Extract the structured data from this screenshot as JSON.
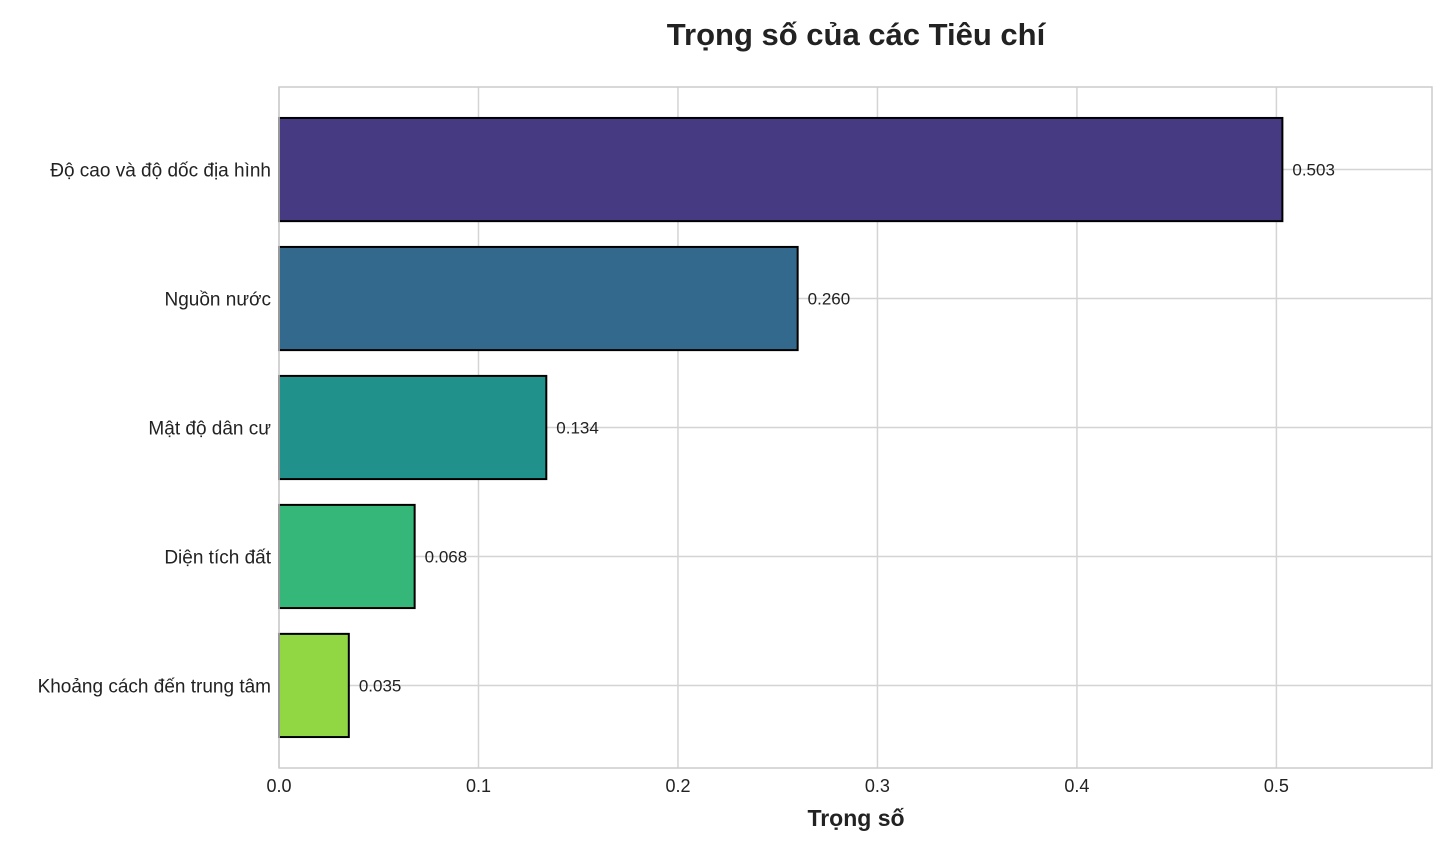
{
  "chart_data": {
    "type": "bar",
    "orientation": "horizontal",
    "title": "Trọng số của các Tiêu chí",
    "xlabel": "Trọng số",
    "ylabel": "",
    "categories": [
      "Độ cao và độ dốc địa hình",
      "Nguồn nước",
      "Mật độ dân cư",
      "Diện tích đất",
      "Khoảng cách đến trung tâm"
    ],
    "values": [
      0.503,
      0.26,
      0.134,
      0.068,
      0.035
    ],
    "value_labels": [
      "0.503",
      "0.260",
      "0.134",
      "0.068",
      "0.035"
    ],
    "colors": [
      "#463b82",
      "#33698c",
      "#21918c",
      "#35b779",
      "#90d743"
    ],
    "xlim": [
      0,
      0.578
    ],
    "xticks": [
      0.0,
      0.1,
      0.2,
      0.3,
      0.4,
      0.5
    ],
    "xtick_labels": [
      "0.0",
      "0.1",
      "0.2",
      "0.3",
      "0.4",
      "0.5"
    ],
    "grid": true,
    "legend": "none"
  }
}
